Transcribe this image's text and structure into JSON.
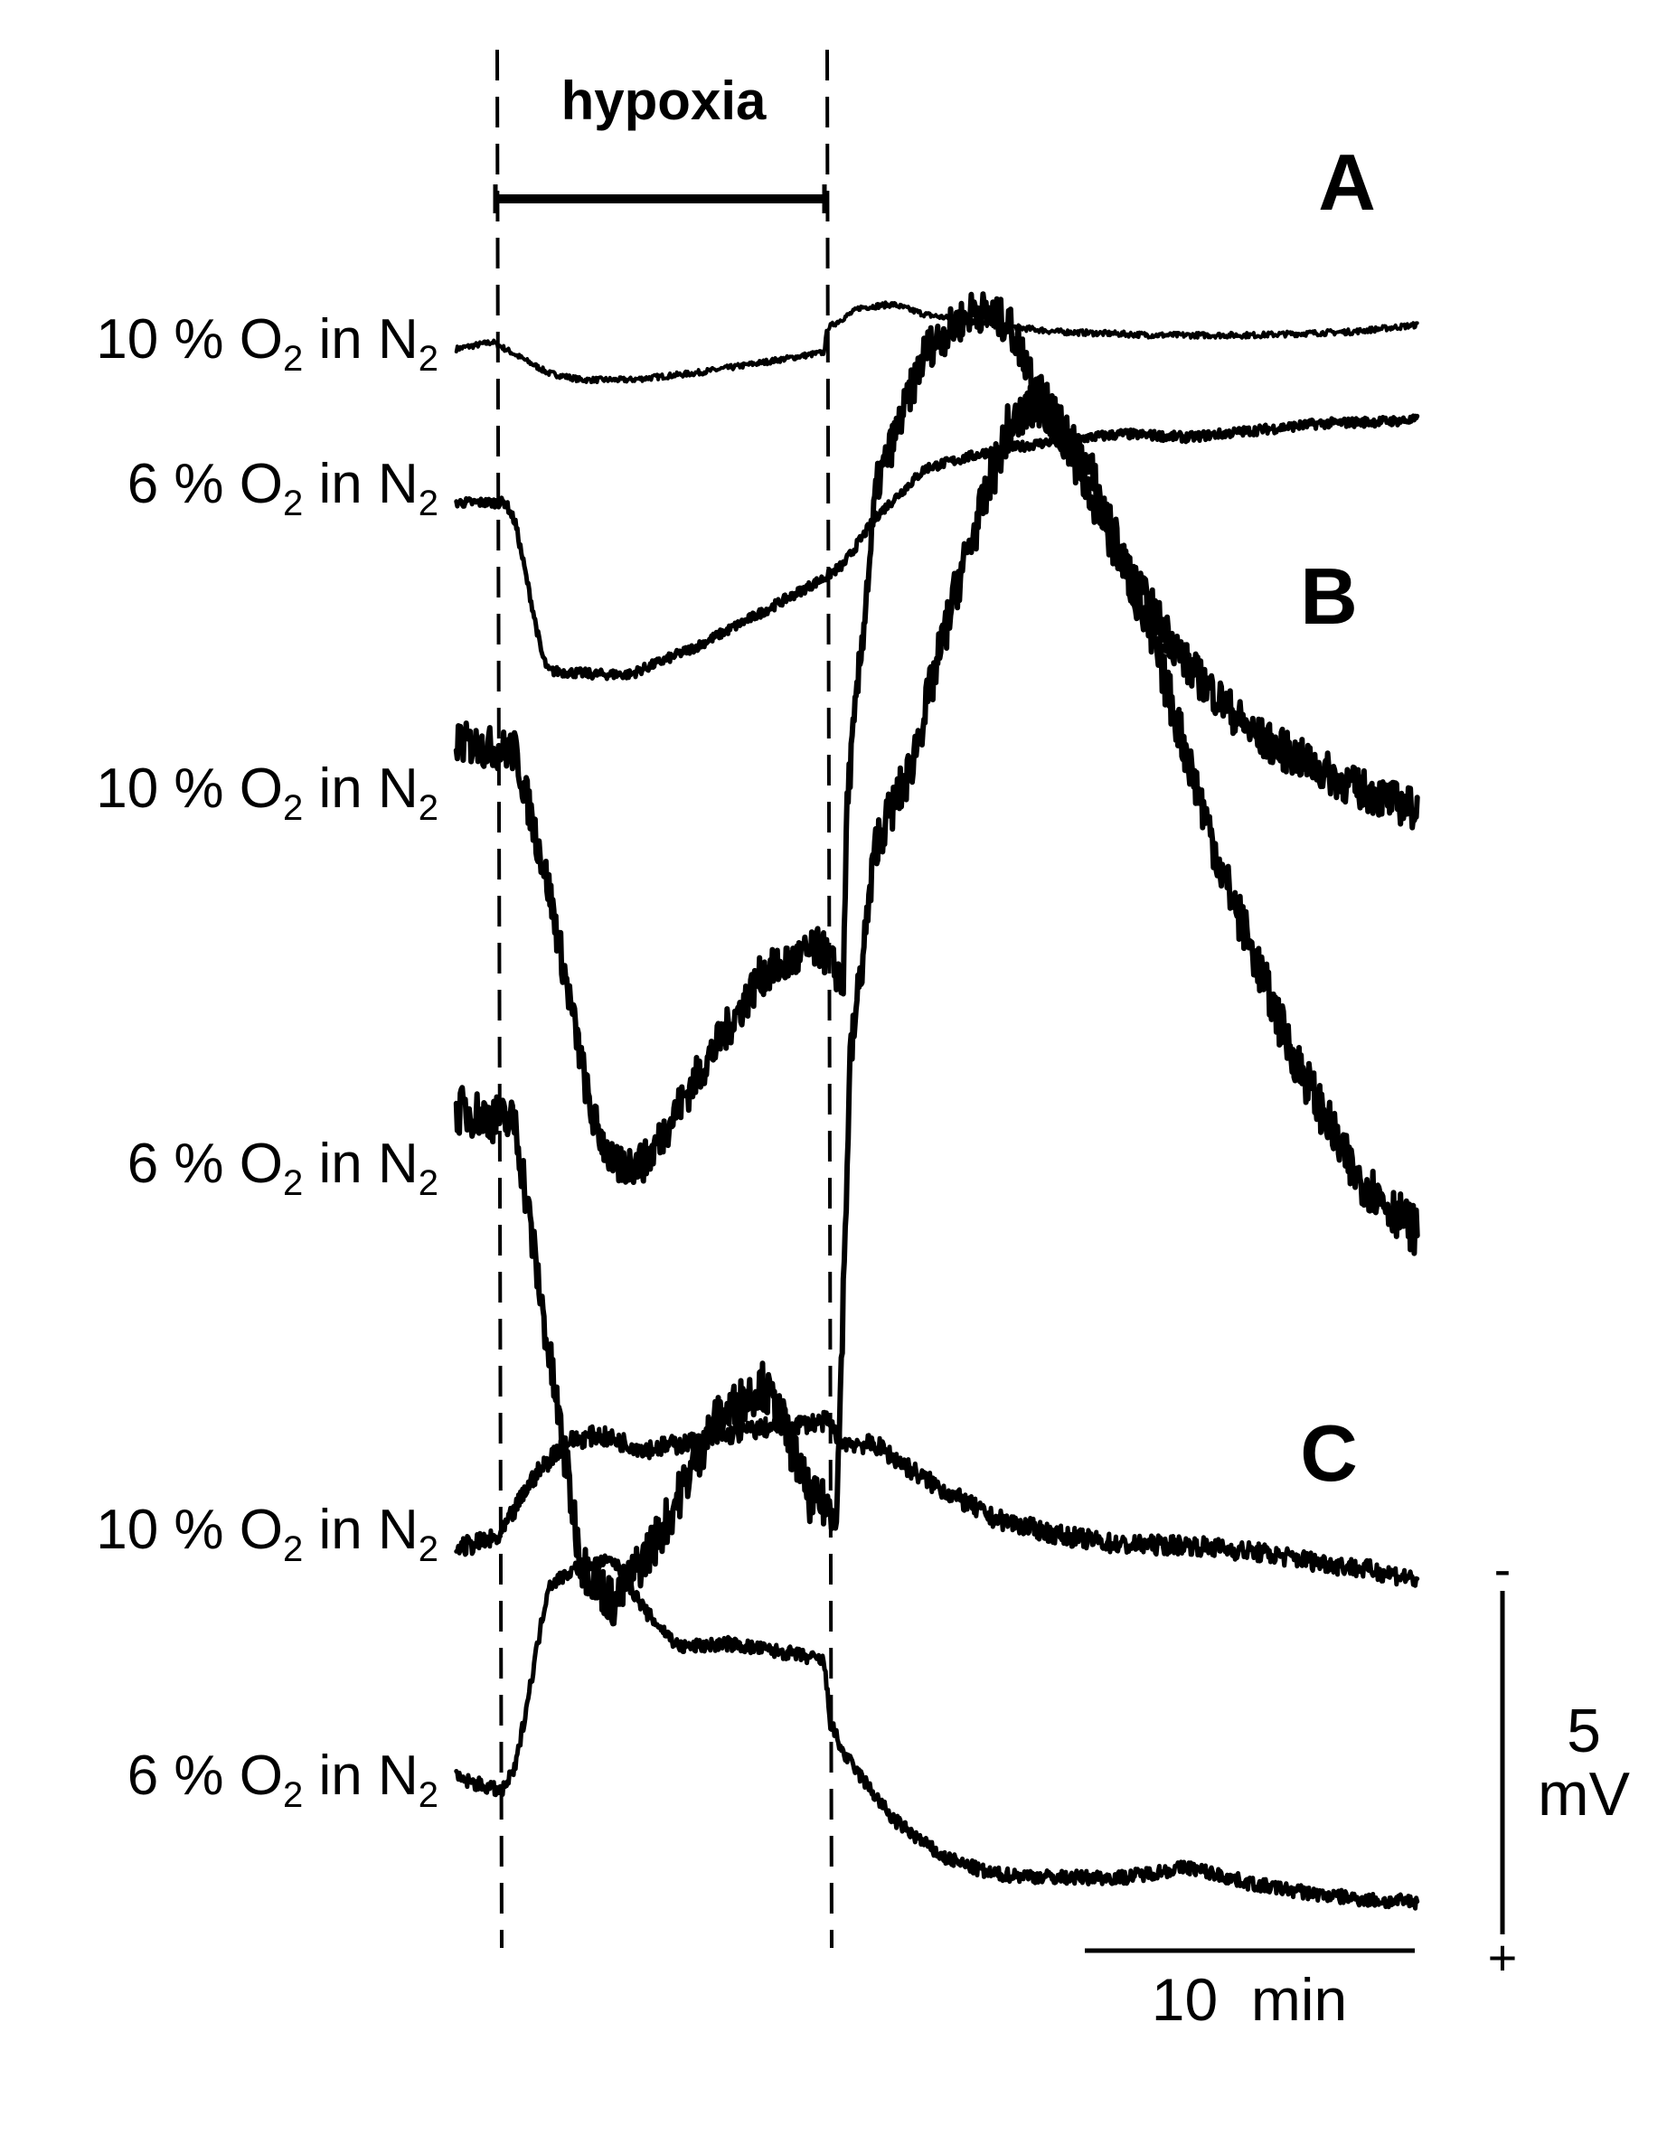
{
  "chart_data": {
    "type": "line",
    "title": "",
    "hypoxia_label": "hypoxia",
    "x_unit": "min",
    "hypoxia_interval_min": [
      0,
      10
    ],
    "time_scale_bar": {
      "label": "10  min",
      "minutes": 10
    },
    "voltage_scale_bar": {
      "value": "5",
      "unit": "mV",
      "top_sign": "-",
      "bottom_sign": "+",
      "mV": 5
    },
    "panels": [
      {
        "label": "A",
        "series": [
          {
            "name": "10 % O2 in N2",
            "label_prefix": "10 % O",
            "label_middle": " in N",
            "x": [
              -1.3,
              -0.2,
              0.0,
              1.5,
              2.5,
              4,
              6,
              8,
              9.9,
              10.0,
              11,
              12,
              13,
              15,
              17,
              20,
              23,
              26,
              28
            ],
            "y": [
              0,
              0.1,
              0.05,
              -0.35,
              -0.45,
              -0.45,
              -0.35,
              -0.2,
              -0.05,
              0.3,
              0.6,
              0.65,
              0.5,
              0.35,
              0.25,
              0.2,
              0.2,
              0.25,
              0.35
            ],
            "noise": 0.04
          },
          {
            "name": "6 % O2 in N2",
            "label_prefix": "6 % O",
            "label_middle": " in N",
            "x": [
              -1.3,
              0.2,
              0.5,
              1.3,
              1.5,
              3,
              4,
              6,
              8,
              9.9,
              10.5,
              11.5,
              13,
              15,
              17,
              19,
              21,
              23,
              25,
              28
            ],
            "y": [
              0,
              0,
              -0.3,
              -2.2,
              -2.45,
              -2.5,
              -2.5,
              -2.1,
              -1.6,
              -1.1,
              -0.9,
              -0.2,
              0.5,
              0.75,
              0.9,
              1.0,
              0.95,
              1.05,
              1.15,
              1.2
            ],
            "noise": 0.07
          }
        ]
      },
      {
        "label": "B",
        "series": [
          {
            "name": "10 % O2 in N2",
            "label_prefix": "10 % O",
            "label_middle": " in N",
            "x": [
              -1.3,
              0.5,
              1.5,
              2.8,
              3.5,
              4.5,
              6,
              8,
              9.8,
              10.5,
              10.6,
              11.5,
              13,
              14.5,
              15.5,
              17,
              19,
              21,
              23,
              26,
              28
            ],
            "y": [
              0.6,
              0.45,
              -1.5,
              -4.8,
              -5.6,
              -5.5,
              -4.3,
              -2.8,
              -2.4,
              -2.9,
              -0.3,
              4.3,
              6.3,
              6.9,
              6.7,
              5.2,
              3.2,
              1.7,
              0.7,
              -0.05,
              -0.4
            ],
            "noise": 0.3
          },
          {
            "name": "6 % O2 in N2",
            "label_prefix": "6 % O",
            "label_middle": " in N",
            "x": [
              -1.3,
              0.5,
              1.5,
              2.5,
              3.5,
              5,
              6.5,
              8,
              8.6,
              9.5,
              10.3,
              10.7,
              11.5,
              12.5,
              14,
              15.5,
              16.5,
              18,
              20,
              22,
              24,
              26,
              28
            ],
            "y": [
              0.3,
              0.1,
              -3.2,
              -6.3,
              -6.9,
              -5.8,
              -4.3,
              -3.7,
              -4.2,
              -5.4,
              -5.5,
              1.0,
              4.2,
              5.2,
              8.0,
              10.2,
              10.6,
              9.6,
              7.0,
              3.8,
              1.3,
              -0.6,
              -1.5
            ],
            "noise": 0.35
          }
        ]
      },
      {
        "label": "C",
        "series": [
          {
            "name": "10 % O2 in N2",
            "label_prefix": "10 % O",
            "label_middle": " in N",
            "x": [
              -1.3,
              0.0,
              1,
              2,
              3,
              4.5,
              6,
              8,
              10,
              10.5,
              11.5,
              13,
              15,
              17,
              19,
              21,
              23,
              25,
              27,
              28
            ],
            "y": [
              0,
              0.15,
              1.0,
              1.55,
              1.65,
              1.45,
              1.55,
              1.75,
              1.85,
              1.55,
              1.5,
              1.0,
              0.45,
              0.2,
              0.05,
              0.05,
              -0.05,
              -0.2,
              -0.35,
              -0.45
            ],
            "noise": 0.14
          },
          {
            "name": "6 % O2 in N2",
            "label_prefix": "6 % O",
            "label_middle": " in N",
            "x": [
              -1.3,
              0.1,
              0.5,
              1.5,
              2.5,
              3.5,
              4.5,
              5.5,
              7,
              9,
              9.9,
              10.1,
              10.5,
              12,
              13.5,
              15,
              17,
              19,
              21,
              23,
              25,
              27,
              28
            ],
            "y": [
              0.2,
              0,
              0.35,
              3.0,
              3.3,
              3.35,
              2.6,
              2.1,
              2.15,
              2.0,
              1.9,
              1.0,
              0.55,
              -0.4,
              -0.95,
              -1.2,
              -1.25,
              -1.25,
              -1.1,
              -1.35,
              -1.5,
              -1.6,
              -1.6
            ],
            "noise": 0.1
          }
        ]
      }
    ]
  }
}
